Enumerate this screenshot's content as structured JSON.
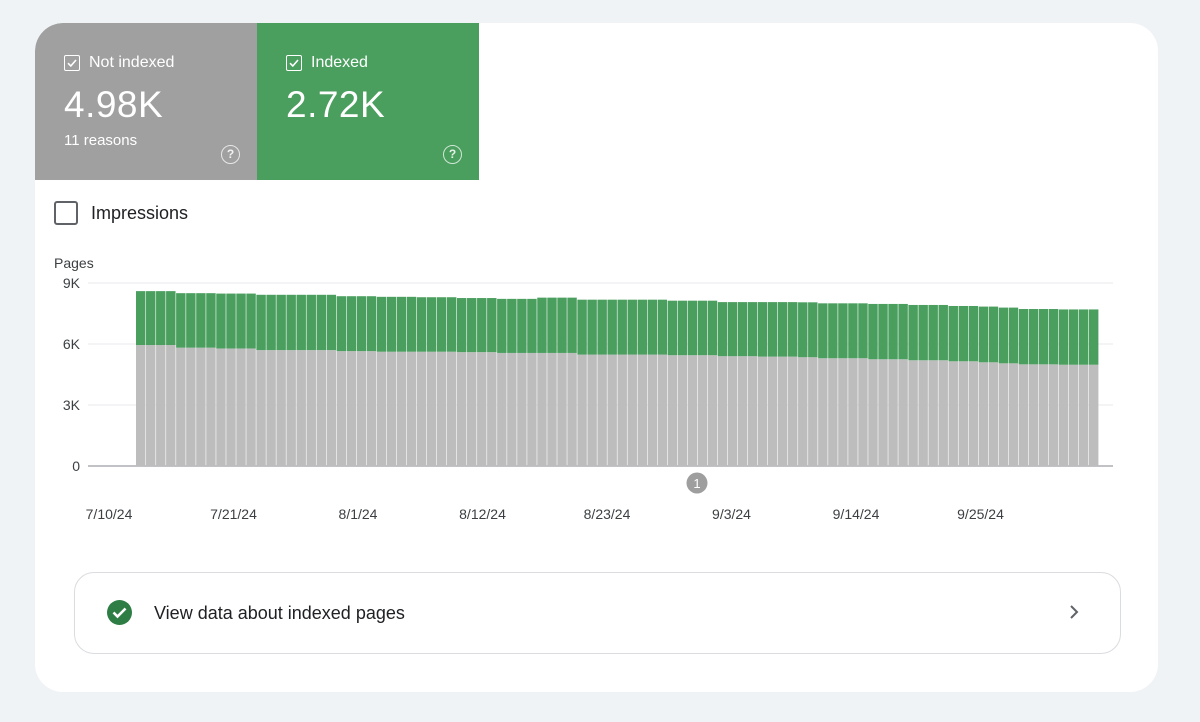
{
  "tiles": {
    "not_indexed": {
      "label": "Not indexed",
      "value": "4.98K",
      "sub": "11 reasons",
      "color": "#a0a0a0",
      "checked": true
    },
    "indexed": {
      "label": "Indexed",
      "value": "2.72K",
      "color": "#4a9e5e",
      "checked": true
    }
  },
  "impressions": {
    "label": "Impressions",
    "checked": false
  },
  "chart_data": {
    "type": "bar",
    "stacked": true,
    "ylabel": "Pages",
    "ylim": [
      0,
      9000
    ],
    "yticks": [
      "9K",
      "6K",
      "3K",
      "0"
    ],
    "yticks_values": [
      9000,
      6000,
      3000,
      0
    ],
    "xticks": [
      "7/10/24",
      "7/21/24",
      "8/1/24",
      "8/12/24",
      "8/23/24",
      "9/3/24",
      "9/14/24",
      "9/25/24"
    ],
    "annotation": "1",
    "x_start": "7/10/24",
    "series": [
      {
        "name": "Not indexed",
        "color": "#bdbdbd",
        "values": [
          5950,
          5950,
          5950,
          5950,
          5820,
          5820,
          5820,
          5820,
          5780,
          5780,
          5780,
          5780,
          5700,
          5700,
          5700,
          5700,
          5700,
          5700,
          5700,
          5700,
          5650,
          5650,
          5650,
          5650,
          5620,
          5620,
          5620,
          5620,
          5620,
          5620,
          5620,
          5620,
          5600,
          5600,
          5600,
          5600,
          5560,
          5560,
          5560,
          5560,
          5560,
          5560,
          5560,
          5560,
          5480,
          5480,
          5480,
          5480,
          5480,
          5480,
          5480,
          5480,
          5480,
          5450,
          5450,
          5450,
          5450,
          5450,
          5400,
          5400,
          5400,
          5400,
          5380,
          5380,
          5380,
          5380,
          5350,
          5350,
          5300,
          5300,
          5300,
          5300,
          5300,
          5250,
          5250,
          5250,
          5250,
          5200,
          5200,
          5200,
          5200,
          5150,
          5150,
          5150,
          5100,
          5100,
          5050,
          5050,
          5000,
          5000,
          5000,
          5000,
          4980,
          4980,
          4980,
          4980
        ]
      },
      {
        "name": "Indexed",
        "color": "#4a9e5e",
        "values": [
          2650,
          2650,
          2650,
          2650,
          2680,
          2680,
          2680,
          2680,
          2700,
          2700,
          2700,
          2700,
          2720,
          2720,
          2720,
          2720,
          2720,
          2720,
          2720,
          2720,
          2700,
          2700,
          2700,
          2700,
          2700,
          2700,
          2700,
          2700,
          2680,
          2680,
          2680,
          2680,
          2660,
          2660,
          2660,
          2660,
          2660,
          2660,
          2660,
          2660,
          2720,
          2720,
          2720,
          2720,
          2700,
          2700,
          2700,
          2700,
          2700,
          2700,
          2700,
          2700,
          2700,
          2680,
          2680,
          2680,
          2680,
          2680,
          2660,
          2660,
          2660,
          2660,
          2680,
          2680,
          2680,
          2680,
          2700,
          2700,
          2700,
          2700,
          2700,
          2700,
          2700,
          2720,
          2720,
          2720,
          2720,
          2720,
          2720,
          2720,
          2720,
          2720,
          2720,
          2720,
          2740,
          2740,
          2740,
          2740,
          2720,
          2720,
          2720,
          2720,
          2720,
          2720,
          2720,
          2720
        ]
      }
    ]
  },
  "banner": {
    "text": "View data about indexed pages"
  }
}
